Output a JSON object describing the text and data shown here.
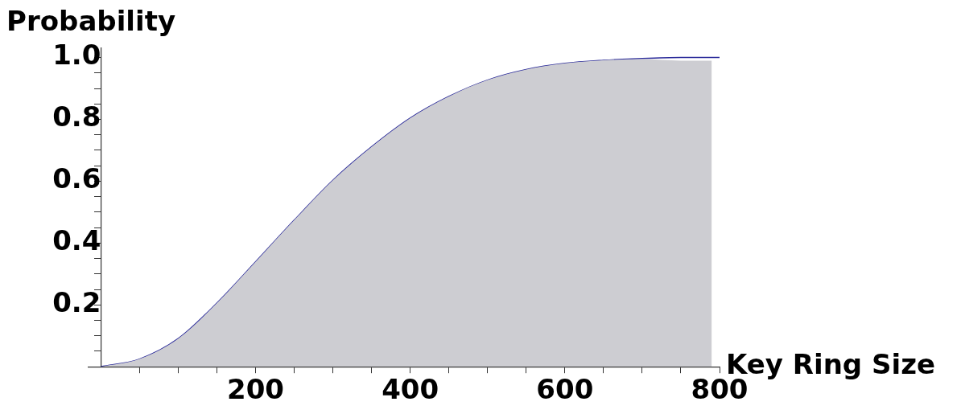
{
  "chart_data": {
    "type": "area",
    "xlabel": "Key Ring Size",
    "ylabel": "Probability",
    "xlim": [
      -16,
      800
    ],
    "ylim": [
      0,
      1.03
    ],
    "xticks": [
      {
        "value": 50,
        "label": null
      },
      {
        "value": 100,
        "label": null
      },
      {
        "value": 150,
        "label": null
      },
      200,
      {
        "value": 250,
        "label": null
      },
      {
        "value": 300,
        "label": null
      },
      {
        "value": 350,
        "label": null
      },
      400,
      {
        "value": 450,
        "label": null
      },
      {
        "value": 500,
        "label": null
      },
      {
        "value": 550,
        "label": null
      },
      600,
      {
        "value": 650,
        "label": null
      },
      {
        "value": 700,
        "label": null
      },
      {
        "value": 750,
        "label": null
      },
      800
    ],
    "yticks": [
      {
        "value": 0.05,
        "label": null
      },
      {
        "value": 0.1,
        "label": null
      },
      {
        "value": 0.15,
        "label": null
      },
      0.2,
      {
        "value": 0.25,
        "label": null
      },
      {
        "value": 0.3,
        "label": null
      },
      {
        "value": 0.35,
        "label": null
      },
      0.4,
      {
        "value": 0.45,
        "label": null
      },
      {
        "value": 0.5,
        "label": null
      },
      {
        "value": 0.55,
        "label": null
      },
      0.6,
      {
        "value": 0.65,
        "label": null
      },
      {
        "value": 0.7,
        "label": null
      },
      {
        "value": 0.75,
        "label": null
      },
      0.8,
      {
        "value": 0.85,
        "label": null
      },
      {
        "value": 0.9,
        "label": null
      },
      {
        "value": 0.95,
        "label": null
      },
      {
        "value": 1,
        "label": "1.0"
      }
    ],
    "grid": false,
    "legend": false,
    "series": [
      {
        "type": "area",
        "color": "#cdcdd2",
        "x": [
          0,
          50,
          100,
          150,
          200,
          250,
          300,
          350,
          400,
          450,
          500,
          550,
          600,
          650,
          700,
          750,
          790
        ],
        "values": [
          0,
          0.025,
          0.091,
          0.206,
          0.339,
          0.474,
          0.603,
          0.711,
          0.804,
          0.874,
          0.927,
          0.961,
          0.981,
          0.991,
          0.995,
          0.99,
          0.99
        ]
      },
      {
        "type": "line",
        "color": "#2b2b9a",
        "x": [
          0,
          50,
          100,
          150,
          200,
          250,
          300,
          350,
          400,
          450,
          500,
          550,
          600,
          650,
          700,
          750,
          800
        ],
        "values": [
          0,
          0.025,
          0.091,
          0.206,
          0.339,
          0.474,
          0.603,
          0.711,
          0.804,
          0.874,
          0.927,
          0.961,
          0.981,
          0.991,
          0.997,
          1,
          1
        ]
      }
    ]
  }
}
